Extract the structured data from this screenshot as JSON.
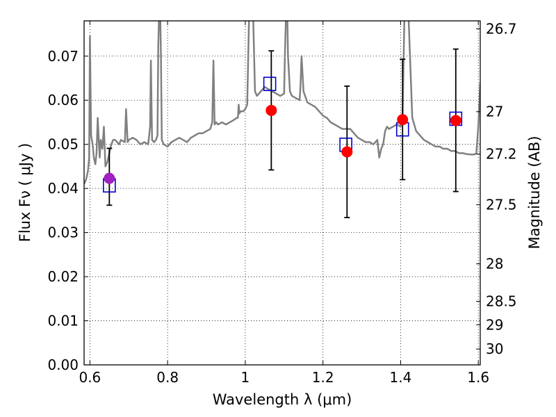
{
  "chart_data": {
    "type": "scatter",
    "xlabel": "Wavelength  λ (μm)",
    "ylabel": "Flux  Fν  ( μJy )",
    "ylabel_right": "Magnitude (AB)",
    "xlim": [
      0.585,
      1.605
    ],
    "ylim": [
      0.0,
      0.078
    ],
    "grid": true,
    "x_ticks": [
      {
        "value": 0.6,
        "label": "0.6"
      },
      {
        "value": 0.8,
        "label": "0.8"
      },
      {
        "value": 1.0,
        "label": "1"
      },
      {
        "value": 1.2,
        "label": "1.2"
      },
      {
        "value": 1.4,
        "label": "1.4"
      },
      {
        "value": 1.6,
        "label": "1.6"
      }
    ],
    "y_ticks": [
      {
        "value": 0.0,
        "label": "0.00"
      },
      {
        "value": 0.01,
        "label": "0.01"
      },
      {
        "value": 0.02,
        "label": "0.02"
      },
      {
        "value": 0.03,
        "label": "0.03"
      },
      {
        "value": 0.04,
        "label": "0.04"
      },
      {
        "value": 0.05,
        "label": "0.05"
      },
      {
        "value": 0.06,
        "label": "0.06"
      },
      {
        "value": 0.07,
        "label": "0.07"
      }
    ],
    "right_ticks": [
      {
        "flux": 0.0762,
        "label": "26.7"
      },
      {
        "flux": 0.0574,
        "label": "27"
      },
      {
        "flux": 0.0478,
        "label": "27.2"
      },
      {
        "flux": 0.0363,
        "label": "27.5"
      },
      {
        "flux": 0.0229,
        "label": "28"
      },
      {
        "flux": 0.0144,
        "label": "28.5"
      },
      {
        "flux": 0.0091,
        "label": "29"
      },
      {
        "flux": 0.0036,
        "label": "30"
      }
    ],
    "model_spectrum": {
      "color": "#808080",
      "x": [
        0.585,
        0.59,
        0.595,
        0.598,
        0.6,
        0.603,
        0.607,
        0.61,
        0.614,
        0.617,
        0.62,
        0.625,
        0.628,
        0.632,
        0.636,
        0.64,
        0.645,
        0.65,
        0.655,
        0.66,
        0.665,
        0.67,
        0.675,
        0.68,
        0.69,
        0.693,
        0.697,
        0.7,
        0.71,
        0.72,
        0.73,
        0.74,
        0.75,
        0.755,
        0.757,
        0.76,
        0.765,
        0.77,
        0.774,
        0.776,
        0.778,
        0.779,
        0.781,
        0.783,
        0.785,
        0.79,
        0.8,
        0.81,
        0.82,
        0.83,
        0.84,
        0.85,
        0.86,
        0.87,
        0.88,
        0.89,
        0.9,
        0.91,
        0.915,
        0.918,
        0.921,
        0.925,
        0.93,
        0.94,
        0.95,
        0.96,
        0.97,
        0.978,
        0.981,
        0.983,
        0.985,
        0.988,
        0.995,
        1.0,
        1.005,
        1.01,
        1.012,
        1.015,
        1.02,
        1.025,
        1.03,
        1.04,
        1.05,
        1.06,
        1.07,
        1.08,
        1.09,
        1.1,
        1.102,
        1.105,
        1.108,
        1.11,
        1.115,
        1.12,
        1.13,
        1.14,
        1.142,
        1.145,
        1.15,
        1.16,
        1.17,
        1.18,
        1.19,
        1.2,
        1.21,
        1.22,
        1.23,
        1.24,
        1.25,
        1.26,
        1.27,
        1.28,
        1.29,
        1.3,
        1.31,
        1.32,
        1.33,
        1.34,
        1.345,
        1.35,
        1.355,
        1.36,
        1.365,
        1.37,
        1.38,
        1.39,
        1.4,
        1.402,
        1.405,
        1.41,
        1.415,
        1.418,
        1.42,
        1.43,
        1.44,
        1.45,
        1.46,
        1.47,
        1.48,
        1.49,
        1.5,
        1.51,
        1.52,
        1.53,
        1.54,
        1.55,
        1.56,
        1.57,
        1.58,
        1.59,
        1.595,
        1.6,
        1.605
      ],
      "y": [
        0.041,
        0.042,
        0.044,
        0.047,
        0.0745,
        0.052,
        0.05,
        0.047,
        0.0455,
        0.048,
        0.056,
        0.047,
        0.051,
        0.049,
        0.054,
        0.045,
        0.046,
        0.048,
        0.05,
        0.051,
        0.051,
        0.0505,
        0.05,
        0.051,
        0.0505,
        0.058,
        0.0505,
        0.051,
        0.0515,
        0.051,
        0.05,
        0.0505,
        0.05,
        0.054,
        0.069,
        0.051,
        0.0505,
        0.051,
        0.052,
        0.072,
        0.08,
        0.08,
        0.08,
        0.07,
        0.051,
        0.05,
        0.0495,
        0.0505,
        0.051,
        0.0515,
        0.051,
        0.0505,
        0.0515,
        0.052,
        0.0525,
        0.0525,
        0.053,
        0.0535,
        0.055,
        0.069,
        0.0545,
        0.055,
        0.0545,
        0.055,
        0.0545,
        0.055,
        0.0555,
        0.056,
        0.056,
        0.059,
        0.057,
        0.0575,
        0.0575,
        0.058,
        0.059,
        0.08,
        0.08,
        0.08,
        0.08,
        0.062,
        0.061,
        0.062,
        0.063,
        0.0625,
        0.062,
        0.0615,
        0.061,
        0.0615,
        0.07,
        0.08,
        0.08,
        0.07,
        0.062,
        0.061,
        0.0605,
        0.06,
        0.063,
        0.07,
        0.062,
        0.0595,
        0.059,
        0.0585,
        0.0575,
        0.0565,
        0.056,
        0.055,
        0.0545,
        0.054,
        0.0535,
        0.0535,
        0.0535,
        0.0525,
        0.0515,
        0.051,
        0.0505,
        0.0505,
        0.05,
        0.051,
        0.047,
        0.049,
        0.05,
        0.053,
        0.054,
        0.0535,
        0.054,
        0.0545,
        0.054,
        0.056,
        0.056,
        0.08,
        0.08,
        0.08,
        0.08,
        0.056,
        0.053,
        0.052,
        0.051,
        0.0505,
        0.05,
        0.0495,
        0.0495,
        0.049,
        0.049,
        0.0485,
        0.0485,
        0.048,
        0.048,
        0.0478,
        0.0477,
        0.0477,
        0.048,
        0.054,
        0.064
      ]
    },
    "series": [
      {
        "marker": "square-open",
        "color": "#0000cc",
        "points": [
          {
            "x": 0.65,
            "y": 0.0407
          },
          {
            "x": 1.063,
            "y": 0.0637
          },
          {
            "x": 1.259,
            "y": 0.0499
          },
          {
            "x": 1.405,
            "y": 0.0534
          },
          {
            "x": 1.542,
            "y": 0.0558
          }
        ]
      },
      {
        "marker": "circle-filled",
        "color": "#ff0000",
        "points": [
          {
            "x": 0.65,
            "y": 0.0423,
            "yerr_low": 0.0362,
            "yerr_high": 0.0491,
            "color": "#a020c0"
          },
          {
            "x": 1.067,
            "y": 0.0577,
            "yerr_low": 0.0442,
            "yerr_high": 0.0712
          },
          {
            "x": 1.262,
            "y": 0.0483,
            "yerr_low": 0.0334,
            "yerr_high": 0.0632
          },
          {
            "x": 1.405,
            "y": 0.0556,
            "yerr_low": 0.042,
            "yerr_high": 0.0693
          },
          {
            "x": 1.542,
            "y": 0.0554,
            "yerr_low": 0.0393,
            "yerr_high": 0.0716
          }
        ]
      }
    ]
  }
}
